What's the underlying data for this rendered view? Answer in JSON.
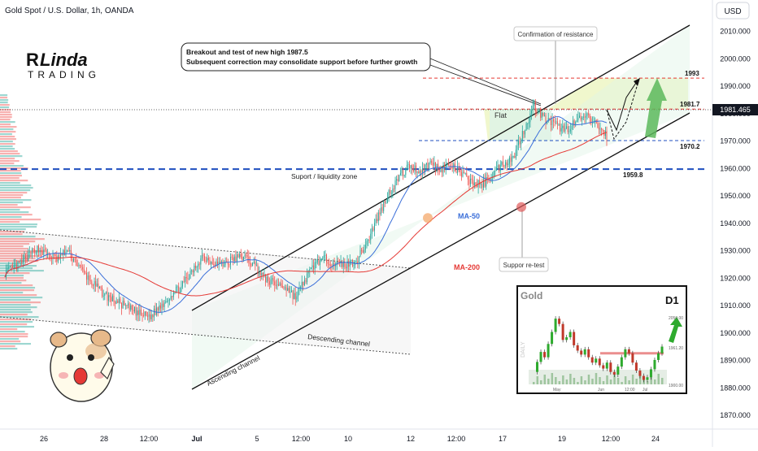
{
  "header": {
    "title": "Gold Spot / U.S. Dollar, 1h, OANDA",
    "currency": "USD"
  },
  "logo": {
    "line1": "Linda",
    "line2": "TRADING",
    "letter": "R"
  },
  "annotations": {
    "callout_line1": "Breakout and test of new high 1987.5",
    "callout_line2": "Subsequent correction may consolidate support before further growth",
    "confirmation": "Confirmation of resistance",
    "flat": "Flat",
    "support_zone": "Suport / liquidity zone",
    "ma50": "MA-50",
    "ma200": "MA-200",
    "retest": "Suppor re-test",
    "ascending": "Ascending channel",
    "descending": "Descending channel"
  },
  "colors": {
    "bull": "#26a69a",
    "bear": "#ef5350",
    "ma50": "#3b6fd9",
    "ma200": "#e53935",
    "support": "#1f4fbf",
    "resistance": "#e53935",
    "target_zone": "#e9f3b8",
    "channel_fill": "#dff3e6"
  },
  "chart_data": [
    {
      "type": "candlestick",
      "title": "Gold Spot / U.S. Dollar, 1h, OANDA",
      "y_axis_label": "USD",
      "ylim": [
        1866,
        2016
      ],
      "y_ticks": [
        1870,
        1880,
        1890,
        1900,
        1910,
        1920,
        1930,
        1940,
        1950,
        1960,
        1970,
        1980,
        1990,
        2000,
        2010
      ],
      "y_tick_labels": [
        "1870.000",
        "1880.000",
        "1890.000",
        "1900.000",
        "1910.000",
        "1920.000",
        "1930.000",
        "1940.000",
        "1950.000",
        "1960.000",
        "1970.000",
        "1980.000",
        "1990.000",
        "2000.000",
        "2010.000"
      ],
      "x_ticks": [
        "26",
        "28",
        "12:00",
        "Jul",
        "5",
        "12:00",
        "10",
        "12",
        "12:00",
        "17",
        "19",
        "12:00",
        "24"
      ],
      "last_price": "1981.465",
      "levels": [
        {
          "value": 1993,
          "label": "1993",
          "style": "dashed",
          "color": "resistance"
        },
        {
          "value": 1981.7,
          "label": "1981.7",
          "style": "dashed",
          "color": "resistance"
        },
        {
          "value": 1970.2,
          "label": "1970.2",
          "style": "dashed",
          "color": "support"
        },
        {
          "value": 1959.8,
          "label": "1959.8",
          "style": "dashed-thick",
          "color": "support"
        }
      ],
      "price_path": [
        [
          0,
          1922
        ],
        [
          8,
          1924
        ],
        [
          16,
          1927
        ],
        [
          24,
          1931
        ],
        [
          32,
          1929
        ],
        [
          40,
          1927
        ],
        [
          48,
          1930
        ],
        [
          56,
          1925
        ],
        [
          64,
          1920
        ],
        [
          72,
          1916
        ],
        [
          80,
          1913
        ],
        [
          88,
          1911
        ],
        [
          96,
          1909
        ],
        [
          104,
          1907
        ],
        [
          112,
          1906
        ],
        [
          120,
          1910
        ],
        [
          128,
          1914
        ],
        [
          136,
          1917
        ],
        [
          144,
          1922
        ],
        [
          152,
          1928
        ],
        [
          160,
          1926
        ],
        [
          168,
          1925
        ],
        [
          176,
          1927
        ],
        [
          184,
          1928
        ],
        [
          192,
          1925
        ],
        [
          200,
          1920
        ],
        [
          208,
          1918
        ],
        [
          216,
          1917
        ],
        [
          224,
          1913
        ],
        [
          232,
          1920
        ],
        [
          240,
          1926
        ],
        [
          248,
          1927
        ],
        [
          256,
          1925
        ],
        [
          264,
          1925
        ],
        [
          272,
          1927
        ],
        [
          280,
          1934
        ],
        [
          288,
          1943
        ],
        [
          296,
          1951
        ],
        [
          304,
          1957
        ],
        [
          312,
          1961
        ],
        [
          320,
          1959
        ],
        [
          328,
          1962
        ],
        [
          336,
          1960
        ],
        [
          344,
          1961
        ],
        [
          352,
          1958
        ],
        [
          360,
          1955
        ],
        [
          368,
          1954
        ],
        [
          376,
          1958
        ],
        [
          384,
          1962
        ],
        [
          392,
          1964
        ],
        [
          400,
          1974
        ],
        [
          408,
          1983
        ],
        [
          416,
          1978
        ],
        [
          424,
          1976
        ],
        [
          432,
          1974
        ],
        [
          440,
          1977
        ],
        [
          448,
          1979
        ],
        [
          456,
          1976
        ],
        [
          464,
          1972
        ]
      ]
    },
    {
      "type": "line",
      "title": "Gold",
      "timeframe": "D1",
      "x_ticks": [
        "May",
        "Jun",
        "12:00",
        "Jul"
      ],
      "y_tick_labels": [
        "2050.00",
        "1961.20",
        "1900.00"
      ],
      "y_label": "DAILY",
      "values": [
        1930,
        1945,
        1960,
        1952,
        1972,
        1990,
        2010,
        2002,
        1978,
        1982,
        1990,
        1970,
        1962,
        1956,
        1964,
        1952,
        1944,
        1950,
        1940,
        1935,
        1944,
        1930,
        1926,
        1938,
        1952,
        1964,
        1958,
        1944,
        1932,
        1924,
        1918,
        1922,
        1934,
        1948,
        1958,
        1968
      ]
    }
  ]
}
